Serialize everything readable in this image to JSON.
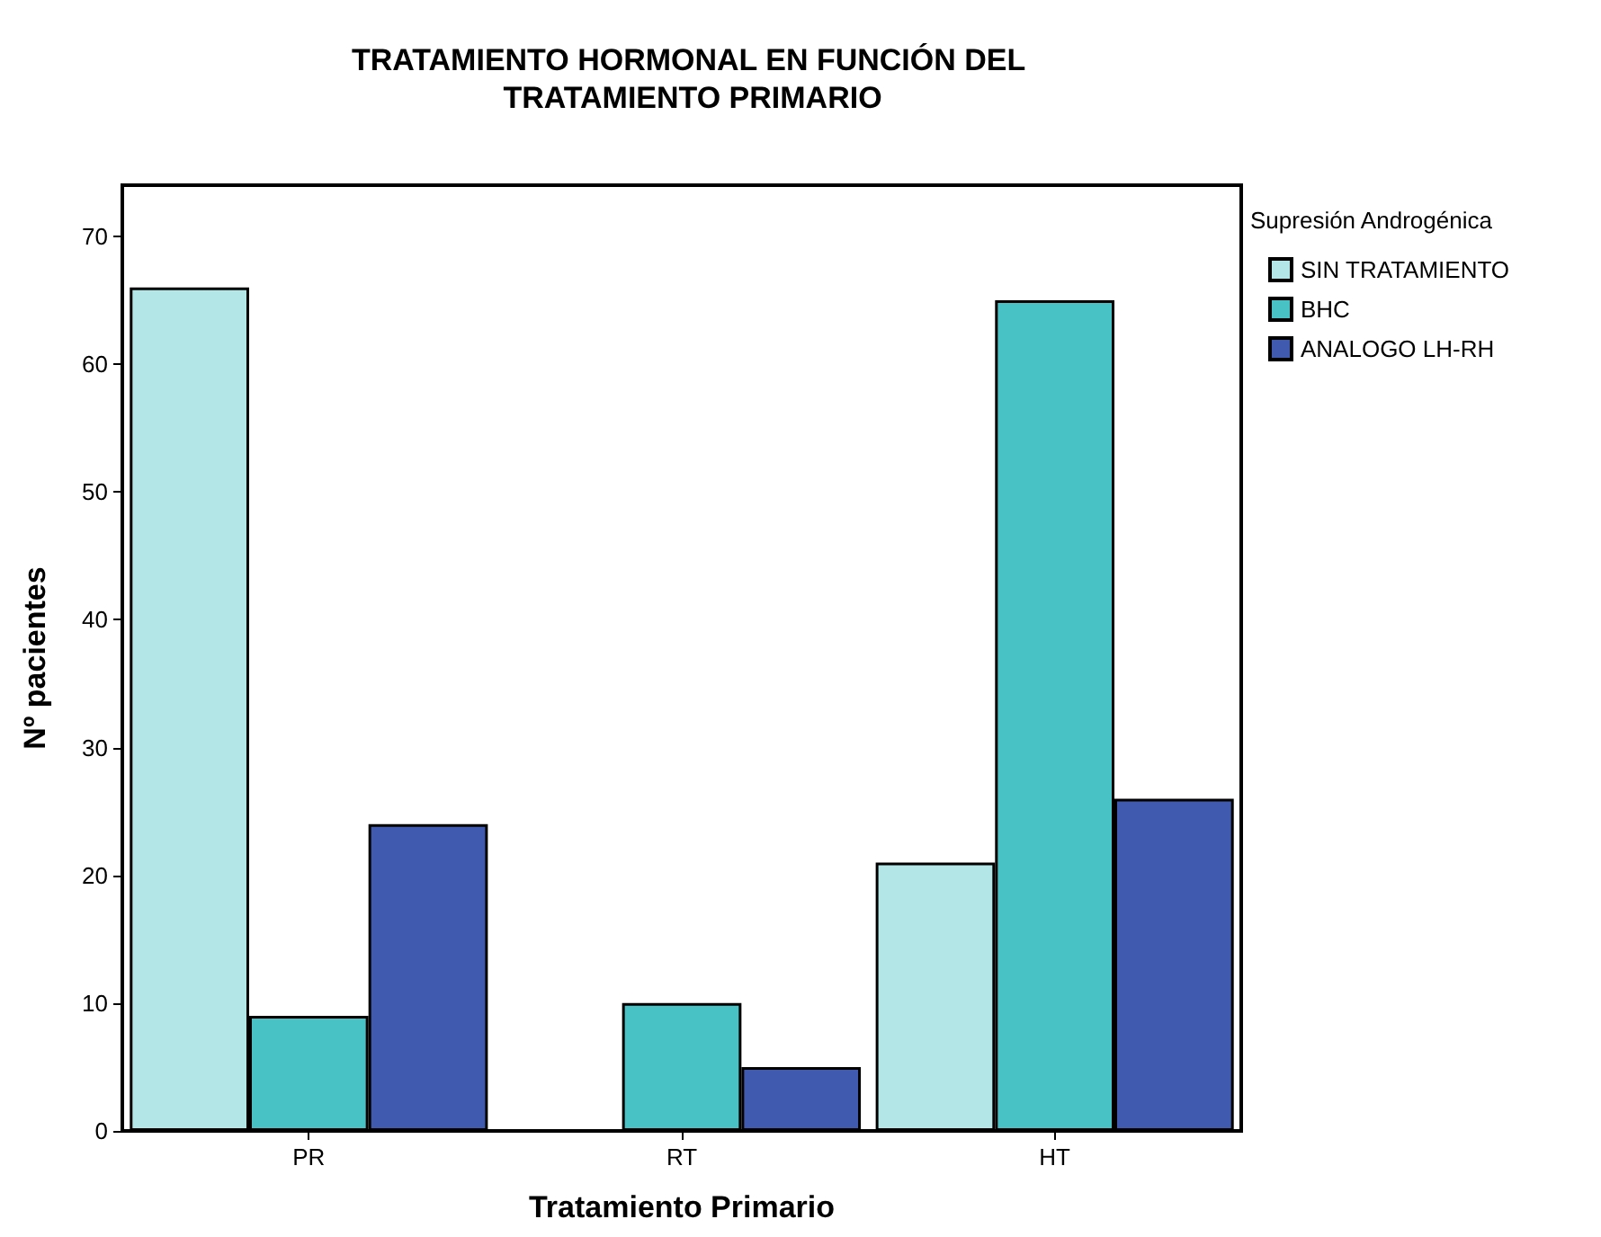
{
  "chart_data": {
    "type": "bar",
    "title": "TRATAMIENTO HORMONAL EN FUNCIÓN DEL TRATAMIENTO PRIMARIO",
    "xlabel": "Tratamiento Primario",
    "ylabel": "Nº pacientes",
    "legend_title": "Supresión Androgénica",
    "categories": [
      "PR",
      "RT",
      "HT"
    ],
    "series": [
      {
        "name": "SIN TRATAMIENTO",
        "color": "#b3e6e6",
        "values": [
          66,
          0,
          21
        ]
      },
      {
        "name": "BHC",
        "color": "#48c2c5",
        "values": [
          9,
          10,
          65
        ]
      },
      {
        "name": "ANALOGO LH-RH",
        "color": "#3f5aae",
        "values": [
          24,
          5,
          26
        ]
      }
    ],
    "ylim": [
      0,
      74
    ],
    "yticks": [
      0,
      10,
      20,
      30,
      40,
      50,
      60,
      70
    ],
    "grid": false,
    "legend": "top right"
  }
}
